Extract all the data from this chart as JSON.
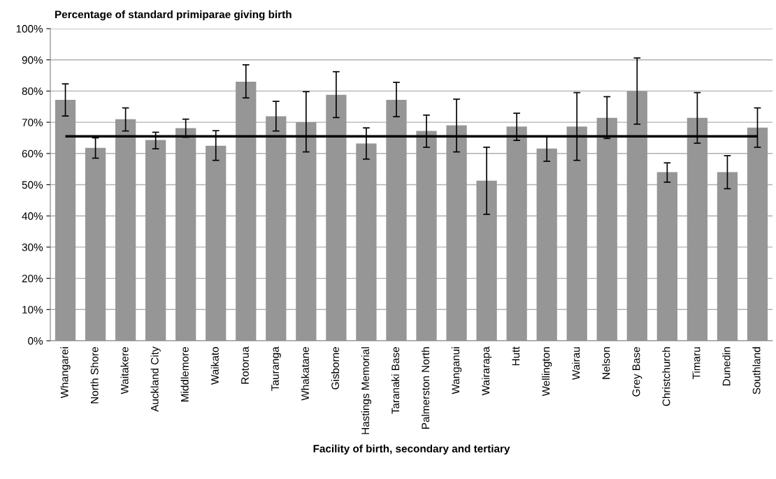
{
  "chart_data": {
    "type": "bar",
    "title": "Percentage of standard primiparae giving birth",
    "xlabel": "Facility of birth, secondary and tertiary",
    "categories": [
      "Whangarei",
      "North Shore",
      "Waitakere",
      "Auckland City",
      "Middlemore",
      "Waikato",
      "Rotorua",
      "Tauranga",
      "Whakatane",
      "Gisborne",
      "Hastings Memorial",
      "Taranaki Base",
      "Palmerston North",
      "Wanganui",
      "Wairarapa",
      "Hutt",
      "Wellington",
      "Wairau",
      "Nelson",
      "Grey Base",
      "Christchurch",
      "Timaru",
      "Dunedin",
      "Southland"
    ],
    "values": [
      77.2,
      61.8,
      71,
      64.3,
      68.1,
      62.5,
      83,
      71.9,
      70,
      78.8,
      63.2,
      77.2,
      67.2,
      69,
      51.3,
      68.6,
      61.6,
      68.6,
      71.4,
      80,
      54,
      71.4,
      54,
      68.3
    ],
    "errors": [
      [
        72,
        82.3
      ],
      [
        58.5,
        65
      ],
      [
        67.2,
        74.6
      ],
      [
        61.5,
        66.8
      ],
      [
        65.2,
        71
      ],
      [
        57.8,
        67.3
      ],
      [
        77.8,
        88.4
      ],
      [
        67.2,
        76.7
      ],
      [
        60.5,
        79.8
      ],
      [
        71.5,
        86.2
      ],
      [
        58.2,
        68.2
      ],
      [
        71.8,
        82.8
      ],
      [
        62,
        72.3
      ],
      [
        60.5,
        77.4
      ],
      [
        40.5,
        62
      ],
      [
        64.2,
        72.9
      ],
      [
        57.5,
        65.5
      ],
      [
        57.8,
        79.5
      ],
      [
        64.8,
        78.2
      ],
      [
        69.4,
        90.6
      ],
      [
        50.8,
        57
      ],
      [
        63.3,
        79.5
      ],
      [
        48.7,
        59.3
      ],
      [
        62,
        74.6
      ]
    ],
    "color": "#969696",
    "ylim": [
      0,
      100
    ],
    "yticks": [
      {
        "value": 0,
        "label": "0%"
      },
      {
        "value": 10,
        "label": "10%"
      },
      {
        "value": 20,
        "label": "20%"
      },
      {
        "value": 30,
        "label": "30%"
      },
      {
        "value": 40,
        "label": "40%"
      },
      {
        "value": 50,
        "label": "50%"
      },
      {
        "value": 60,
        "label": "60%"
      },
      {
        "value": 70,
        "label": "70%"
      },
      {
        "value": 80,
        "label": "80%"
      },
      {
        "value": 90,
        "label": "90%"
      },
      {
        "value": 100,
        "label": "100%"
      }
    ],
    "ref_lines": [
      {
        "axis": "y",
        "value": 65.5,
        "color": "#000000",
        "line_style": "solid"
      }
    ],
    "grid": "y"
  }
}
